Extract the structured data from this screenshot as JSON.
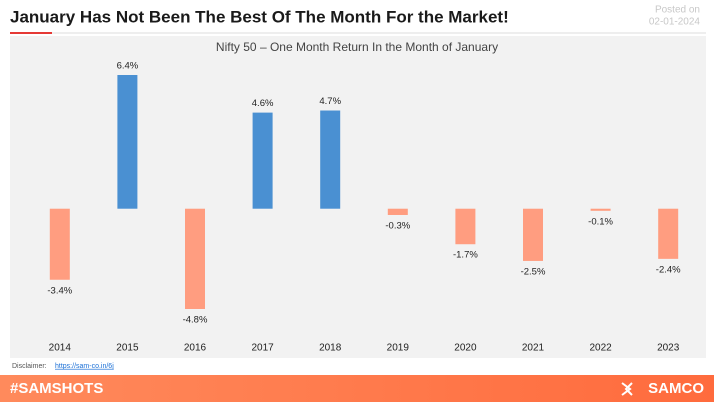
{
  "header": {
    "title": "January Has Not Been The Best Of The Month For the Market!",
    "posted_label": "Posted on",
    "posted_date": "02-01-2024"
  },
  "chart_data": {
    "type": "bar",
    "title": "Nifty 50 – One Month Return In the Month of January",
    "categories": [
      "2014",
      "2015",
      "2016",
      "2017",
      "2018",
      "2019",
      "2020",
      "2021",
      "2022",
      "2023"
    ],
    "values": [
      -3.4,
      6.4,
      -4.8,
      4.6,
      4.7,
      -0.3,
      -1.7,
      -2.5,
      -0.1,
      -2.4
    ],
    "value_labels": [
      "-3.4%",
      "6.4%",
      "-4.8%",
      "4.6%",
      "4.7%",
      "-0.3%",
      "-1.7%",
      "-2.5%",
      "-0.1%",
      "-2.4%"
    ],
    "positive_color": "#4a90d2",
    "negative_color": "#ff9d80"
  },
  "disclaimer": {
    "label": "Disclaimer:",
    "link": "https://sam-co.in/6j"
  },
  "footer": {
    "hashtag": "#SAMSHOTS",
    "brand": "SAMCO"
  }
}
